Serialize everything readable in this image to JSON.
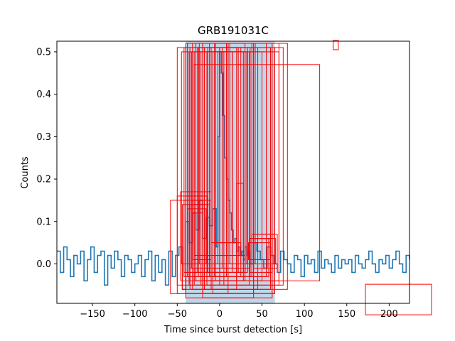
{
  "chart_data": {
    "type": "line",
    "title": "GRB191031C",
    "xlabel": "Time since burst detection [s]",
    "ylabel": "Counts",
    "xlim": [
      -192,
      224
    ],
    "ylim": [
      -0.093,
      0.525
    ],
    "x_ticks": [
      -150,
      -100,
      -50,
      0,
      50,
      100,
      150,
      200
    ],
    "x_tick_labels": [
      "−150",
      "−100",
      "−50",
      "0",
      "50",
      "100",
      "150",
      "200"
    ],
    "y_ticks": [
      0.0,
      0.1,
      0.2,
      0.3,
      0.4,
      0.5
    ],
    "y_tick_labels": [
      "0.0",
      "0.1",
      "0.2",
      "0.3",
      "0.4",
      "0.5"
    ],
    "grid": false,
    "shaded_interval": {
      "x": [
        -40,
        65
      ],
      "color": "#c1d6e8"
    },
    "series": [
      {
        "color": "#1f77b4",
        "x": [
          -192,
          -188,
          -184,
          -180,
          -176,
          -172,
          -168,
          -164,
          -160,
          -156,
          -152,
          -148,
          -144,
          -140,
          -136,
          -132,
          -128,
          -124,
          -120,
          -116,
          -112,
          -108,
          -104,
          -100,
          -96,
          -92,
          -88,
          -84,
          -80,
          -76,
          -72,
          -68,
          -64,
          -60,
          -56,
          -52,
          -48,
          -44,
          -40,
          -36,
          -32,
          -28,
          -24,
          -20,
          -16,
          -12,
          -8,
          -4,
          -2,
          0,
          2,
          4,
          6,
          8,
          10,
          12,
          14,
          16,
          18,
          20,
          22,
          24,
          26,
          28,
          30,
          32,
          34,
          36,
          40,
          44,
          48,
          52,
          56,
          60,
          64,
          68,
          72,
          76,
          80,
          84,
          88,
          92,
          96,
          100,
          104,
          108,
          112,
          116,
          120,
          124,
          128,
          132,
          136,
          140,
          144,
          148,
          152,
          156,
          160,
          164,
          168,
          172,
          176,
          180,
          184,
          188,
          192,
          196,
          200,
          204,
          208,
          212,
          216,
          220,
          224
        ],
        "values": [
          0.03,
          -0.02,
          0.04,
          0.01,
          -0.03,
          0.02,
          0.0,
          0.03,
          -0.04,
          0.01,
          0.04,
          -0.02,
          0.02,
          0.03,
          -0.05,
          0.02,
          -0.01,
          0.03,
          0.01,
          -0.03,
          0.02,
          0.01,
          -0.02,
          0.0,
          0.02,
          -0.03,
          0.01,
          0.03,
          -0.04,
          0.02,
          -0.02,
          0.01,
          -0.05,
          0.03,
          -0.03,
          0.02,
          0.04,
          -0.06,
          0.1,
          0.05,
          0.12,
          0.08,
          0.15,
          0.06,
          0.11,
          0.09,
          0.13,
          0.04,
          0.3,
          0.5,
          0.45,
          0.35,
          0.25,
          0.2,
          0.15,
          0.12,
          0.08,
          0.05,
          0.06,
          0.03,
          0.04,
          0.02,
          0.03,
          0.01,
          0.04,
          0.02,
          0.03,
          0.0,
          0.05,
          0.03,
          0.01,
          -0.01,
          0.04,
          0.02,
          0.0,
          -0.02,
          0.03,
          0.01,
          0.0,
          -0.02,
          0.02,
          0.01,
          -0.03,
          0.02,
          0.0,
          0.01,
          -0.02,
          0.03,
          -0.01,
          0.01,
          0.0,
          -0.02,
          0.02,
          -0.01,
          0.01,
          0.0,
          0.01,
          -0.02,
          0.02,
          0.0,
          -0.01,
          0.01,
          0.03,
          0.0,
          -0.02,
          0.01,
          0.0,
          0.02,
          -0.01,
          0.01,
          0.03,
          0.0,
          -0.02,
          0.02,
          0.01
        ]
      }
    ],
    "boxes": [
      [
        -40,
        -0.07,
        10,
        0.52
      ],
      [
        -35,
        -0.06,
        20,
        0.51
      ],
      [
        -30,
        -0.05,
        5,
        0.5
      ],
      [
        -28,
        -0.04,
        30,
        0.52
      ],
      [
        -25,
        -0.03,
        25,
        0.51
      ],
      [
        -22,
        -0.05,
        35,
        0.5
      ],
      [
        -20,
        -0.07,
        40,
        0.52
      ],
      [
        -18,
        -0.06,
        45,
        0.51
      ],
      [
        -15,
        -0.04,
        50,
        0.5
      ],
      [
        -12,
        -0.03,
        55,
        0.52
      ],
      [
        -10,
        -0.06,
        60,
        0.51
      ],
      [
        -8,
        -0.07,
        65,
        0.5
      ],
      [
        -5,
        -0.04,
        70,
        0.52
      ],
      [
        0,
        -0.05,
        75,
        0.51
      ],
      [
        -45,
        0.0,
        -5,
        0.5
      ],
      [
        -42,
        -0.02,
        0,
        0.51
      ],
      [
        -38,
        -0.03,
        8,
        0.52
      ],
      [
        -33,
        -0.01,
        15,
        0.5
      ],
      [
        -26,
        -0.02,
        22,
        0.51
      ],
      [
        -24,
        0.0,
        12,
        0.52
      ],
      [
        -18,
        -0.04,
        28,
        0.5
      ],
      [
        -14,
        -0.02,
        33,
        0.51
      ],
      [
        -6,
        -0.03,
        38,
        0.52
      ],
      [
        -2,
        0.0,
        32,
        0.5
      ],
      [
        3,
        -0.01,
        36,
        0.51
      ],
      [
        10,
        0.0,
        42,
        0.52
      ],
      [
        15,
        -0.02,
        30,
        0.5
      ],
      [
        -36,
        -0.05,
        70,
        0.5
      ],
      [
        -32,
        -0.06,
        80,
        0.52
      ],
      [
        -50,
        -0.07,
        65,
        0.51
      ],
      [
        -30,
        -0.04,
        118,
        0.47
      ],
      [
        -40,
        -0.08,
        40,
        0.51
      ],
      [
        -20,
        -0.08,
        62,
        0.52
      ],
      [
        -58,
        -0.07,
        -20,
        0.15
      ],
      [
        -50,
        -0.05,
        -15,
        0.16
      ],
      [
        -46,
        -0.04,
        -10,
        0.17
      ],
      [
        -44,
        -0.06,
        -18,
        0.14
      ],
      [
        -42,
        -0.03,
        -12,
        0.15
      ],
      [
        -40,
        -0.02,
        -14,
        0.16
      ],
      [
        -38,
        0.0,
        -16,
        0.13
      ],
      [
        -35,
        -0.01,
        -12,
        0.14
      ],
      [
        -32,
        0.01,
        -10,
        0.15
      ],
      [
        -30,
        0.02,
        -20,
        0.12
      ],
      [
        -28,
        0.0,
        -14,
        0.14
      ],
      [
        20,
        -0.02,
        28,
        0.19
      ],
      [
        35,
        -0.02,
        62,
        0.06
      ],
      [
        38,
        0.0,
        65,
        0.07
      ],
      [
        40,
        -0.01,
        68,
        0.07
      ],
      [
        34,
        0.01,
        60,
        0.05
      ],
      [
        36,
        -0.03,
        58,
        0.06
      ],
      [
        42,
        0.0,
        66,
        0.06
      ],
      [
        -10,
        -0.01,
        20,
        0.05
      ],
      [
        -15,
        -0.02,
        30,
        0.02
      ],
      [
        -5,
        0.0,
        25,
        0.05
      ],
      [
        -20,
        -0.04,
        20,
        0.02
      ],
      [
        134,
        0.505,
        140,
        0.527
      ],
      [
        172,
        -0.12,
        250,
        -0.048
      ]
    ]
  }
}
